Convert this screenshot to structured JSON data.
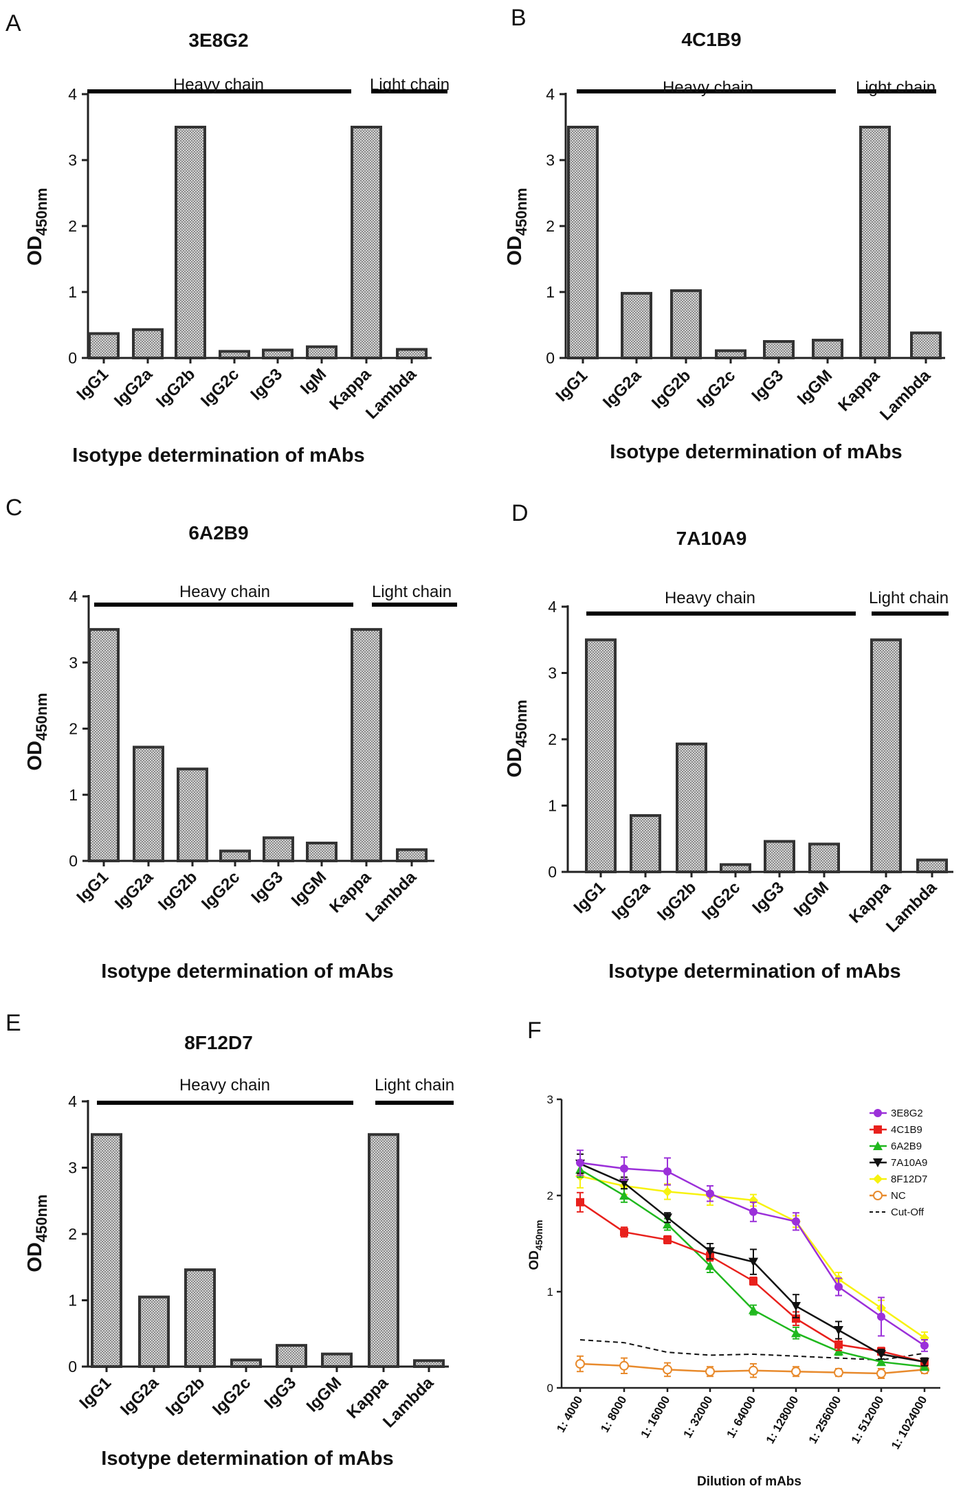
{
  "chart_data": [
    {
      "panel": "A",
      "type": "bar",
      "title": "3E8G2",
      "ylabel": "OD",
      "ylabel_sub": "450nm",
      "xlabel": "Isotype determination of mAbs",
      "ylim": [
        0,
        4
      ],
      "yticks": [
        0,
        1,
        2,
        3,
        4
      ],
      "categories": [
        "IgG1",
        "IgG2a",
        "IgG2b",
        "IgG2c",
        "IgG3",
        "IgM",
        "Kappa",
        "Lambda"
      ],
      "values": [
        0.37,
        0.43,
        3.5,
        0.1,
        0.12,
        0.17,
        3.5,
        0.13
      ],
      "groups": [
        {
          "label": "Heavy chain",
          "from": 0,
          "to": 5
        },
        {
          "label": "Light chain",
          "from": 6,
          "to": 7
        }
      ]
    },
    {
      "panel": "B",
      "type": "bar",
      "title": "4C1B9",
      "ylabel": "OD",
      "ylabel_sub": "450nm",
      "xlabel": "Isotype determination of mAbs",
      "ylim": [
        0,
        4
      ],
      "yticks": [
        0,
        1,
        2,
        3,
        4
      ],
      "categories": [
        "IgG1",
        "IgG2a",
        "IgG2b",
        "IgG2c",
        "IgG3",
        "IgGM",
        "Kappa",
        "Lambda"
      ],
      "values": [
        3.5,
        0.98,
        1.02,
        0.11,
        0.25,
        0.27,
        3.5,
        0.38
      ],
      "groups": [
        {
          "label": "Heavy  chain",
          "from": 0,
          "to": 5
        },
        {
          "label": "Light chain",
          "from": 6,
          "to": 7
        }
      ]
    },
    {
      "panel": "C",
      "type": "bar",
      "title": "6A2B9",
      "ylabel": "OD",
      "ylabel_sub": "450nm",
      "xlabel": "Isotype determination of mAbs",
      "ylim": [
        0,
        4
      ],
      "yticks": [
        0,
        1,
        2,
        3,
        4
      ],
      "categories": [
        "IgG1",
        "IgG2a",
        "IgG2b",
        "IgG2c",
        "IgG3",
        "IgGM",
        "Kappa",
        "Lambda"
      ],
      "values": [
        3.5,
        1.72,
        1.39,
        0.15,
        0.35,
        0.27,
        3.5,
        0.17
      ],
      "groups": [
        {
          "label": "Heavy  chain",
          "from": 0,
          "to": 5
        },
        {
          "label": "Light chain",
          "from": 6,
          "to": 7
        }
      ]
    },
    {
      "panel": "D",
      "type": "bar",
      "title": "7A10A9",
      "ylabel": "OD",
      "ylabel_sub": "450nm",
      "xlabel": "Isotype determination of mAbs",
      "ylim": [
        0,
        4
      ],
      "yticks": [
        0,
        1,
        2,
        3,
        4
      ],
      "categories": [
        "IgG1",
        "IgG2a",
        "IgG2b",
        "IgG2c",
        "IgG3",
        "IgGM",
        "Kappa",
        "Lambda"
      ],
      "values": [
        3.5,
        0.85,
        1.93,
        0.11,
        0.46,
        0.42,
        3.5,
        0.18
      ],
      "groups": [
        {
          "label": "Heavy  chain",
          "from": 0,
          "to": 5
        },
        {
          "label": "Light chain",
          "from": 6,
          "to": 7
        }
      ]
    },
    {
      "panel": "E",
      "type": "bar",
      "title": "8F12D7",
      "ylabel": "OD",
      "ylabel_sub": "450nm",
      "xlabel": "Isotype determination of mAbs",
      "ylim": [
        0,
        4
      ],
      "yticks": [
        0,
        1,
        2,
        3,
        4
      ],
      "categories": [
        "IgG1",
        "IgG2a",
        "IgG2b",
        "IgG2c",
        "IgG3",
        "IgGM",
        "Kappa",
        "Lambda"
      ],
      "values": [
        3.5,
        1.05,
        1.46,
        0.1,
        0.32,
        0.19,
        3.5,
        0.09
      ],
      "groups": [
        {
          "label": "Heavy chain",
          "from": 0,
          "to": 5
        },
        {
          "label": "Light chain",
          "from": 6,
          "to": 7
        }
      ]
    },
    {
      "panel": "F",
      "type": "line",
      "title": "",
      "ylabel": "OD",
      "ylabel_sub": "450nm",
      "xlabel": "Dilution of mAbs",
      "ylim": [
        0,
        3
      ],
      "yticks": [
        0,
        1,
        2,
        3
      ],
      "x": [
        "1: 4000",
        "1: 8000",
        "1: 16000",
        "1: 32000",
        "1: 64000",
        "1: 128000",
        "1: 256000",
        "1: 512000",
        "1: 1024000"
      ],
      "series": [
        {
          "name": "3E8G2",
          "color": "#9b30d9",
          "marker": "circle",
          "values": [
            2.34,
            2.28,
            2.25,
            2.02,
            1.83,
            1.73,
            1.05,
            0.74,
            0.44
          ],
          "errors": [
            0.13,
            0.12,
            0.14,
            0.08,
            0.1,
            0.09,
            0.09,
            0.2,
            0.06
          ]
        },
        {
          "name": "4C1B9",
          "color": "#e8201c",
          "marker": "square",
          "values": [
            1.93,
            1.62,
            1.54,
            1.37,
            1.11,
            0.72,
            0.45,
            0.38,
            0.27
          ],
          "errors": [
            0.1,
            0.05,
            0.04,
            0.05,
            0.04,
            0.07,
            0.06,
            0.04,
            0.04
          ]
        },
        {
          "name": "6A2B9",
          "color": "#20b81e",
          "marker": "triangle",
          "values": [
            2.27,
            2.0,
            1.7,
            1.27,
            0.81,
            0.57,
            0.38,
            0.27,
            0.22
          ],
          "errors": [
            0.08,
            0.07,
            0.06,
            0.07,
            0.05,
            0.06,
            0.04,
            0.03,
            0.03
          ]
        },
        {
          "name": "7A10A9",
          "color": "#111111",
          "marker": "triangle-down",
          "values": [
            2.33,
            2.13,
            1.77,
            1.42,
            1.31,
            0.85,
            0.6,
            0.35,
            0.27
          ],
          "errors": [
            0.1,
            0.06,
            0.05,
            0.08,
            0.13,
            0.12,
            0.09,
            0.05,
            0.04
          ]
        },
        {
          "name": "8F12D7",
          "color": "#f7f20f",
          "marker": "diamond",
          "values": [
            2.2,
            2.1,
            2.04,
            2.0,
            1.95,
            1.73,
            1.13,
            0.83,
            0.52
          ],
          "errors": [
            0.12,
            0.09,
            0.08,
            0.1,
            0.06,
            0.06,
            0.07,
            0.08,
            0.06
          ]
        },
        {
          "name": "NC",
          "color": "#e88a2c",
          "marker": "open-circle",
          "values": [
            0.25,
            0.23,
            0.19,
            0.17,
            0.18,
            0.17,
            0.16,
            0.15,
            0.19
          ],
          "errors": [
            0.08,
            0.08,
            0.07,
            0.05,
            0.07,
            0.05,
            0.04,
            0.05,
            0.04
          ]
        },
        {
          "name": "Cut-Off",
          "color": "#111111",
          "marker": "dashed",
          "values": [
            0.5,
            0.47,
            0.37,
            0.34,
            0.35,
            0.33,
            0.31,
            0.29,
            0.36
          ],
          "errors": []
        }
      ]
    }
  ]
}
